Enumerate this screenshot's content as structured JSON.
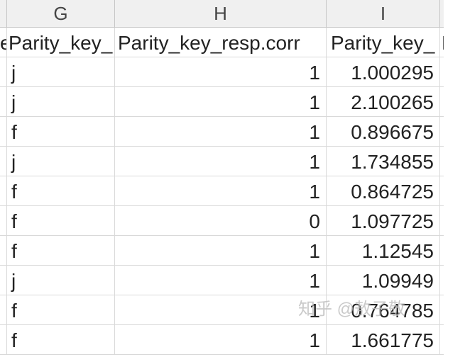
{
  "columns": {
    "g": "G",
    "h": "H",
    "i": "I"
  },
  "header_row": {
    "pre": "e",
    "g": "Parity_key_",
    "h": "Parity_key_resp.corr",
    "i": "Parity_key_",
    "j": "F"
  },
  "rows": [
    {
      "g": "j",
      "h": "1",
      "i": "1.000295"
    },
    {
      "g": "j",
      "h": "1",
      "i": "2.100265"
    },
    {
      "g": "f",
      "h": "1",
      "i": "0.896675"
    },
    {
      "g": "j",
      "h": "1",
      "i": "1.734855"
    },
    {
      "g": "f",
      "h": "1",
      "i": "0.864725"
    },
    {
      "g": "f",
      "h": "0",
      "i": "1.097725"
    },
    {
      "g": "f",
      "h": "1",
      "i": "1.12545"
    },
    {
      "g": "j",
      "h": "1",
      "i": "1.09949"
    },
    {
      "g": "f",
      "h": "1",
      "i": "0.764785"
    },
    {
      "g": "f",
      "h": "1",
      "i": "1.661775"
    }
  ],
  "watermark": "知乎 @敖子敬"
}
